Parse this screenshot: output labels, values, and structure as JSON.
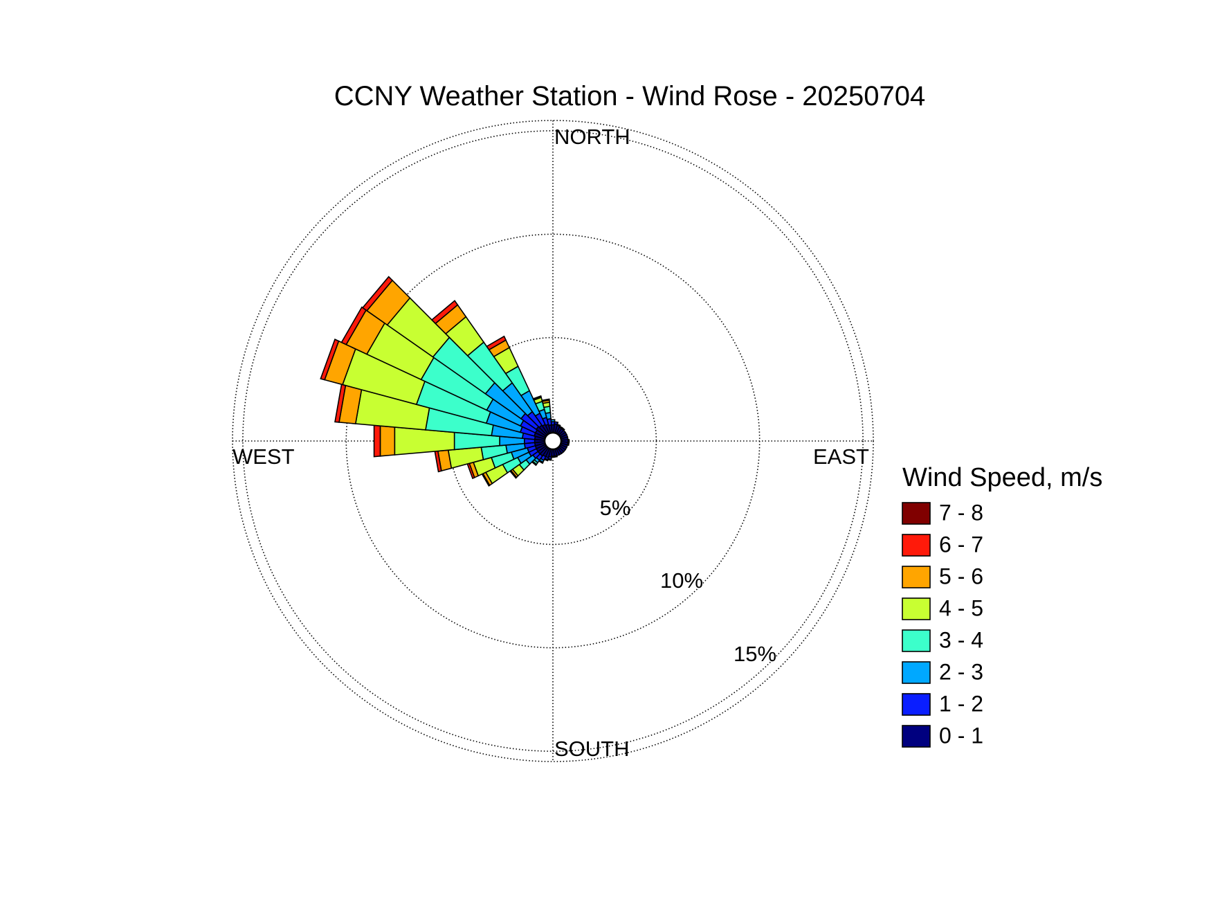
{
  "chart_data": {
    "type": "wind-rose",
    "title": "CCNY Weather Station - Wind Rose - 20250704",
    "direction_labels": {
      "north": "NORTH",
      "east": "EAST",
      "south": "SOUTH",
      "west": "WEST"
    },
    "rings": [
      {
        "value": 5,
        "label": "5%"
      },
      {
        "value": 10,
        "label": "10%"
      },
      {
        "value": 15,
        "label": "15%"
      }
    ],
    "rmax": 15.5,
    "sector_width_deg": 10,
    "legend": {
      "title": "Wind Speed, m/s",
      "bins": [
        {
          "label": "7 - 8",
          "color": "#800000"
        },
        {
          "label": "6 - 7",
          "color": "#ff1a0a"
        },
        {
          "label": "5 - 6",
          "color": "#ffa500"
        },
        {
          "label": "4 - 5",
          "color": "#c8ff32"
        },
        {
          "label": "3 - 4",
          "color": "#3cffcb"
        },
        {
          "label": "2 - 3",
          "color": "#00a8ff"
        },
        {
          "label": "1 - 2",
          "color": "#0a1eff"
        },
        {
          "label": "0 - 1",
          "color": "#00007f"
        }
      ]
    },
    "series_order": [
      "0 - 1",
      "1 - 2",
      "2 - 3",
      "3 - 4",
      "4 - 5",
      "5 - 6",
      "6 - 7",
      "7 - 8"
    ],
    "sectors": [
      {
        "direction": 190,
        "values": [
          0.45,
          0.1,
          0.05,
          0,
          0,
          0,
          0,
          0
        ]
      },
      {
        "direction": 200,
        "values": [
          0.5,
          0.1,
          0.05,
          0,
          0,
          0,
          0,
          0
        ]
      },
      {
        "direction": 210,
        "values": [
          0.5,
          0.2,
          0.1,
          0.05,
          0,
          0,
          0,
          0
        ]
      },
      {
        "direction": 220,
        "values": [
          0.55,
          0.25,
          0.15,
          0.1,
          0.05,
          0,
          0,
          0
        ]
      },
      {
        "direction": 230,
        "values": [
          0.55,
          0.3,
          0.4,
          0.4,
          0.4,
          0.1,
          0.05,
          0
        ]
      },
      {
        "direction": 240,
        "values": [
          0.55,
          0.4,
          0.6,
          0.8,
          0.9,
          0.15,
          0.05,
          0
        ]
      },
      {
        "direction": 250,
        "values": [
          0.55,
          0.4,
          0.8,
          1.0,
          0.9,
          0.2,
          0.1,
          0
        ]
      },
      {
        "direction": 260,
        "values": [
          0.55,
          0.5,
          0.9,
          1.2,
          1.6,
          0.5,
          0.15,
          0
        ]
      },
      {
        "direction": 270,
        "values": [
          0.55,
          0.5,
          1.2,
          2.2,
          2.9,
          0.7,
          0.3,
          0
        ]
      },
      {
        "direction": 280,
        "values": [
          0.55,
          0.6,
          1.5,
          3.2,
          3.4,
          0.8,
          0.2,
          0
        ]
      },
      {
        "direction": 290,
        "values": [
          0.6,
          0.7,
          1.7,
          3.5,
          3.7,
          0.9,
          0.2,
          0
        ]
      },
      {
        "direction": 300,
        "values": [
          0.6,
          0.8,
          1.8,
          3.5,
          2.9,
          1.1,
          0.25,
          0
        ]
      },
      {
        "direction": 310,
        "values": [
          0.65,
          0.9,
          2.1,
          3.1,
          2.7,
          1.2,
          0.25,
          0
        ]
      },
      {
        "direction": 320,
        "values": [
          0.6,
          0.8,
          1.7,
          2.4,
          1.5,
          0.7,
          0.25,
          0
        ]
      },
      {
        "direction": 330,
        "values": [
          0.55,
          0.6,
          1.2,
          1.3,
          1.0,
          0.4,
          0.2,
          0
        ]
      },
      {
        "direction": 340,
        "values": [
          0.5,
          0.35,
          0.4,
          0.4,
          0.2,
          0.05,
          0.02,
          0
        ]
      },
      {
        "direction": 350,
        "values": [
          0.45,
          0.3,
          0.3,
          0.3,
          0.2,
          0.1,
          0.05,
          0
        ]
      },
      {
        "direction": 0,
        "values": [
          0.45,
          0.15,
          0.1,
          0,
          0,
          0,
          0,
          0
        ]
      },
      {
        "direction": 10,
        "values": [
          0.5,
          0.1,
          0,
          0,
          0,
          0,
          0,
          0
        ]
      },
      {
        "direction": 20,
        "values": [
          0.45,
          0.05,
          0,
          0,
          0,
          0,
          0,
          0
        ]
      },
      {
        "direction": 30,
        "values": [
          0.4,
          0.05,
          0,
          0,
          0,
          0,
          0,
          0
        ]
      },
      {
        "direction": 40,
        "values": [
          0.4,
          0.05,
          0,
          0,
          0,
          0,
          0,
          0
        ]
      },
      {
        "direction": 50,
        "values": [
          0.4,
          0,
          0,
          0,
          0,
          0,
          0,
          0
        ]
      },
      {
        "direction": 60,
        "values": [
          0.4,
          0,
          0,
          0,
          0,
          0,
          0,
          0
        ]
      },
      {
        "direction": 70,
        "values": [
          0.4,
          0,
          0,
          0,
          0,
          0,
          0,
          0
        ]
      },
      {
        "direction": 80,
        "values": [
          0.4,
          0,
          0,
          0,
          0,
          0,
          0,
          0
        ]
      },
      {
        "direction": 90,
        "values": [
          0.4,
          0.05,
          0,
          0,
          0,
          0,
          0,
          0
        ]
      },
      {
        "direction": 100,
        "values": [
          0.4,
          0.05,
          0,
          0,
          0,
          0,
          0,
          0
        ]
      },
      {
        "direction": 110,
        "values": [
          0.4,
          0,
          0,
          0,
          0,
          0,
          0,
          0
        ]
      },
      {
        "direction": 120,
        "values": [
          0.4,
          0,
          0,
          0,
          0,
          0,
          0,
          0
        ]
      },
      {
        "direction": 130,
        "values": [
          0.4,
          0,
          0,
          0,
          0,
          0,
          0,
          0
        ]
      },
      {
        "direction": 140,
        "values": [
          0.4,
          0,
          0,
          0,
          0,
          0,
          0,
          0
        ]
      },
      {
        "direction": 150,
        "values": [
          0.4,
          0,
          0,
          0,
          0,
          0,
          0,
          0
        ]
      },
      {
        "direction": 160,
        "values": [
          0.4,
          0,
          0,
          0,
          0,
          0,
          0,
          0
        ]
      },
      {
        "direction": 170,
        "values": [
          0.4,
          0.05,
          0,
          0,
          0,
          0,
          0,
          0
        ]
      },
      {
        "direction": 180,
        "values": [
          0.4,
          0.05,
          0,
          0,
          0,
          0,
          0,
          0
        ]
      }
    ]
  }
}
